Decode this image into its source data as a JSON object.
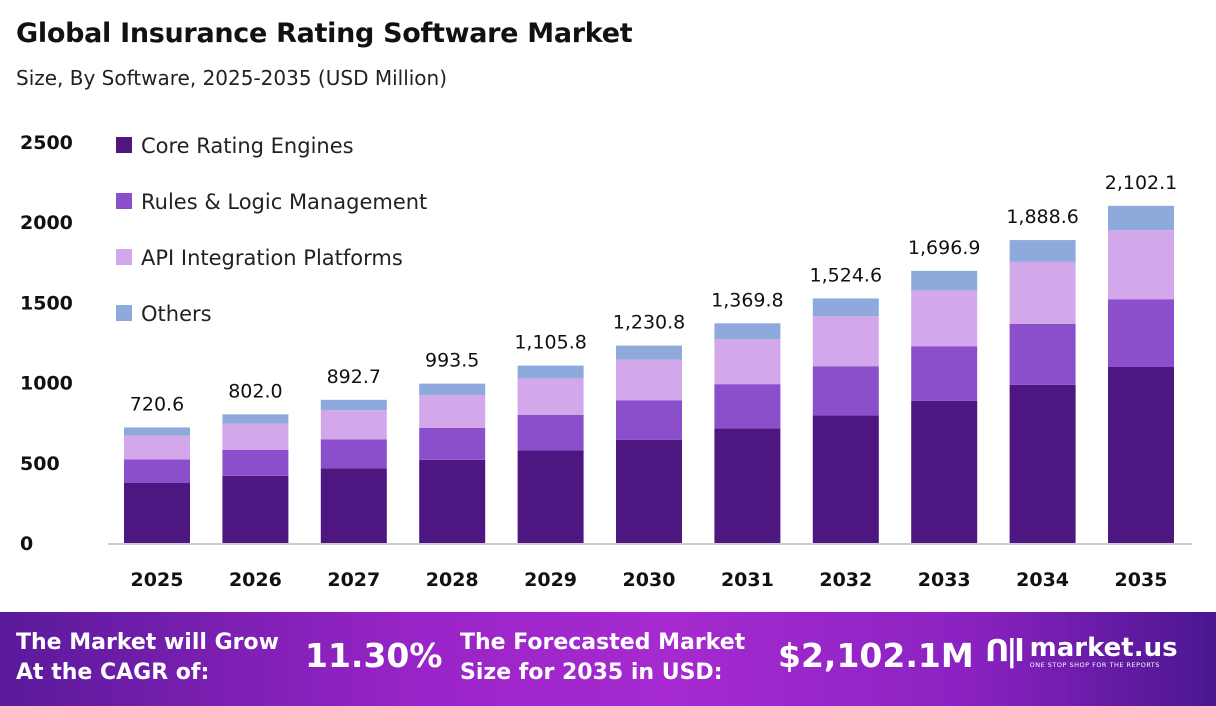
{
  "header": {
    "title": "Global Insurance Rating Software Market",
    "subtitle": "Size, By Software, 2025-2035 (USD Million)"
  },
  "chart_data": {
    "type": "bar",
    "stacked": true,
    "categories": [
      "2025",
      "2026",
      "2027",
      "2028",
      "2029",
      "2030",
      "2031",
      "2032",
      "2033",
      "2034",
      "2035"
    ],
    "series": [
      {
        "name": "Core Rating Engines",
        "color": "#4e1680",
        "values": [
          376.2,
          418.6,
          466.0,
          518.6,
          577.2,
          642.5,
          715.0,
          795.8,
          885.8,
          985.8,
          1097.3
        ]
      },
      {
        "name": "Rules & Logic Management",
        "color": "#8b4fcc",
        "values": [
          144.8,
          161.2,
          179.4,
          199.7,
          222.3,
          247.4,
          275.3,
          306.4,
          341.1,
          379.6,
          422.5
        ]
      },
      {
        "name": "API Integration Platforms",
        "color": "#d3a8ea",
        "values": [
          147.7,
          164.4,
          183.0,
          203.7,
          226.7,
          252.3,
          280.8,
          312.5,
          347.9,
          387.2,
          430.9
        ]
      },
      {
        "name": "Others",
        "color": "#8eaadc",
        "values": [
          51.9,
          57.8,
          64.3,
          71.5,
          79.6,
          88.6,
          98.7,
          109.9,
          122.1,
          136.0,
          151.4
        ]
      }
    ],
    "totals": [
      "720.6",
      "802.0",
      "892.7",
      "993.5",
      "1,105.8",
      "1,230.8",
      "1,369.8",
      "1,524.6",
      "1,696.9",
      "1,888.6",
      "2,102.1"
    ],
    "yticks": [
      "0",
      "500",
      "1000",
      "1500",
      "2000",
      "2500"
    ],
    "ylim": [
      0,
      2500
    ],
    "grid": false,
    "legend": "top-left"
  },
  "banner": {
    "cagr_label": "The Market will Grow At the CAGR of:",
    "cagr_value": "11.30%",
    "forecast_label": "The Forecasted Market Size for 2035 in USD:",
    "forecast_value": "$2,102.1M",
    "logo_name": "market.us",
    "logo_tagline": "ONE STOP SHOP FOR THE REPORTS"
  }
}
